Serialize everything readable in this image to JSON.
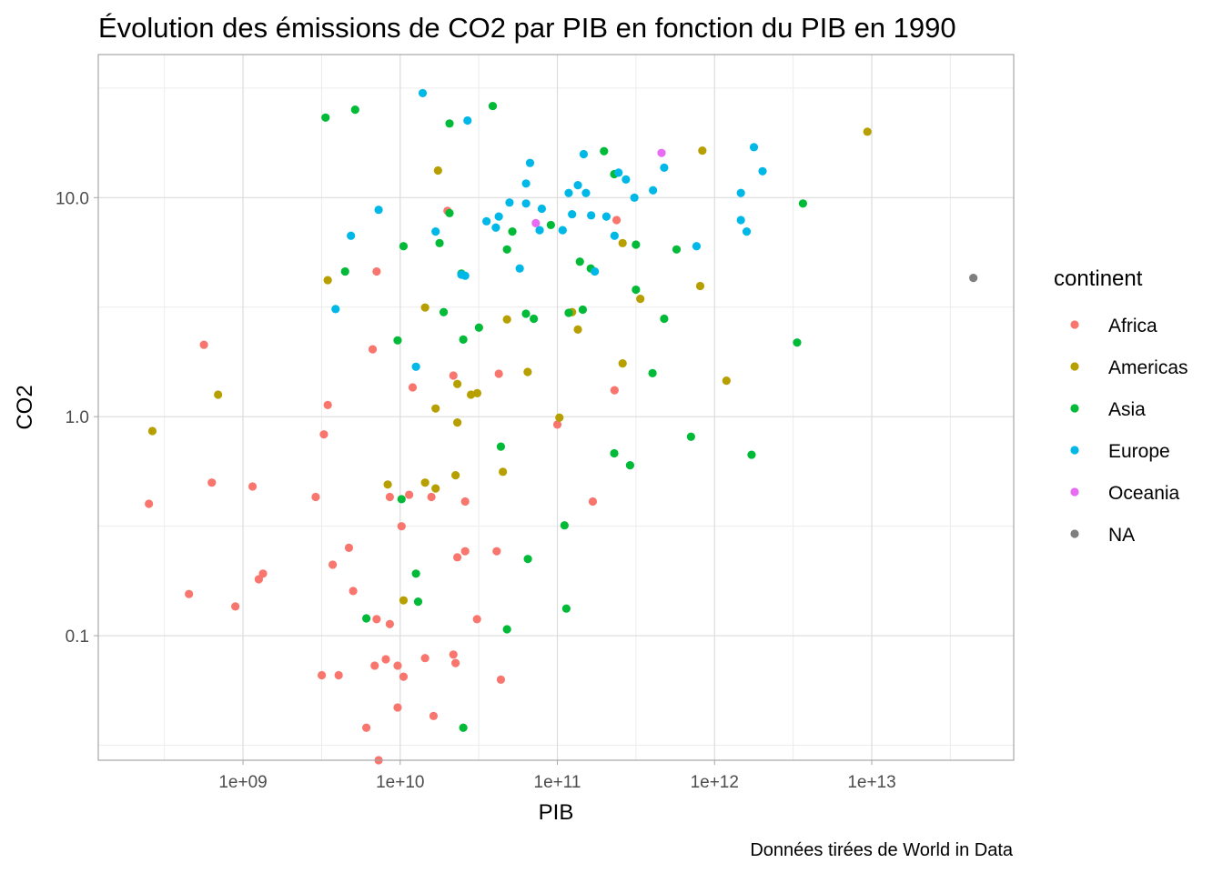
{
  "chart_data": {
    "type": "scatter",
    "title": "Évolution des émissions de CO2 par PIB en fonction du PIB en 1990",
    "xlabel": "PIB",
    "ylabel": "CO2",
    "caption": "Données tirées de World in Data",
    "x_scale": "log10",
    "y_scale": "log10",
    "xlim": [
      120000000,
      80000000000000
    ],
    "ylim": [
      0.027,
      45
    ],
    "x_ticks": [
      {
        "value": 1000000000.0,
        "label": "1e+09"
      },
      {
        "value": 10000000000.0,
        "label": "1e+10"
      },
      {
        "value": 100000000000.0,
        "label": "1e+11"
      },
      {
        "value": 1000000000000.0,
        "label": "1e+12"
      },
      {
        "value": 10000000000000.0,
        "label": "1e+13"
      }
    ],
    "y_ticks": [
      {
        "value": 0.1,
        "label": "0.1"
      },
      {
        "value": 1,
        "label": "1.0"
      },
      {
        "value": 10,
        "label": "10.0"
      }
    ],
    "grid": true,
    "legend": {
      "title": "continent",
      "position": "right",
      "entries": [
        {
          "name": "Africa",
          "color": "#F8766D"
        },
        {
          "name": "Americas",
          "color": "#B79F00"
        },
        {
          "name": "Asia",
          "color": "#00BA38"
        },
        {
          "name": "Europe",
          "color": "#00B8E7"
        },
        {
          "name": "Oceania",
          "color": "#E76BF3"
        },
        {
          "name": "NA",
          "color": "#7F7F7F"
        }
      ]
    },
    "series": [
      {
        "name": "Africa",
        "color": "#F8766D",
        "points": [
          [
            252000000.0,
            0.4
          ],
          [
            453000000.0,
            0.155
          ],
          [
            564000000.0,
            2.13
          ],
          [
            633000000.0,
            0.5
          ],
          [
            894000000.0,
            0.136
          ],
          [
            1150000000.0,
            0.48
          ],
          [
            1260000000.0,
            0.181
          ],
          [
            1340000000.0,
            0.192
          ],
          [
            2900000000.0,
            0.43
          ],
          [
            3170000000.0,
            0.066
          ],
          [
            3270000000.0,
            0.83
          ],
          [
            3460000000.0,
            1.13
          ],
          [
            3720000000.0,
            0.211
          ],
          [
            4060000000.0,
            0.066
          ],
          [
            4720000000.0,
            0.252
          ],
          [
            5020000000.0,
            0.16
          ],
          [
            6090000000.0,
            0.038
          ],
          [
            6680000000.0,
            2.03
          ],
          [
            6880000000.0,
            0.073
          ],
          [
            7080000000.0,
            0.119
          ],
          [
            7080000000.0,
            4.6
          ],
          [
            7290000000.0,
            0.027
          ],
          [
            8100000000.0,
            0.078
          ],
          [
            8590000000.0,
            0.113
          ],
          [
            8590000000.0,
            0.43
          ],
          [
            9630000000.0,
            0.047
          ],
          [
            9630000000.0,
            0.073
          ],
          [
            10200000000.0,
            0.316
          ],
          [
            10500000000.0,
            0.065
          ],
          [
            11400000000.0,
            0.44
          ],
          [
            12000000000.0,
            1.36
          ],
          [
            14400000000.0,
            0.079
          ],
          [
            15800000000.0,
            0.43
          ],
          [
            16300000000.0,
            0.043
          ],
          [
            20000000000.0,
            8.7
          ],
          [
            21800000000.0,
            1.54
          ],
          [
            21800000000.0,
            0.082
          ],
          [
            22500000000.0,
            0.075
          ],
          [
            23100000000.0,
            0.228
          ],
          [
            25900000000.0,
            0.41
          ],
          [
            25900000000.0,
            0.243
          ],
          [
            30800000000.0,
            0.119
          ],
          [
            41100000000.0,
            0.243
          ],
          [
            42400000000.0,
            1.57
          ],
          [
            43700000000.0,
            0.063
          ],
          [
            100000000000.0,
            0.92
          ],
          [
            168000000000.0,
            0.41
          ],
          [
            231000000000.0,
            1.32
          ],
          [
            238000000000.0,
            7.9
          ]
        ]
      },
      {
        "name": "Americas",
        "color": "#B79F00",
        "points": [
          [
            265000000.0,
            0.86
          ],
          [
            694000000.0,
            1.26
          ],
          [
            3460000000.0,
            4.2
          ],
          [
            8330000000.0,
            0.49
          ],
          [
            10500000000.0,
            0.145
          ],
          [
            14400000000.0,
            0.5
          ],
          [
            14400000000.0,
            3.15
          ],
          [
            16800000000.0,
            1.09
          ],
          [
            16800000000.0,
            0.47
          ],
          [
            17400000000.0,
            13.3
          ],
          [
            22500000000.0,
            0.54
          ],
          [
            23100000000.0,
            1.41
          ],
          [
            23100000000.0,
            0.94
          ],
          [
            28200000000.0,
            1.26
          ],
          [
            30900000000.0,
            1.28
          ],
          [
            45000000000.0,
            0.56
          ],
          [
            47800000000.0,
            2.78
          ],
          [
            64700000000.0,
            1.6
          ],
          [
            103000000000.0,
            0.99
          ],
          [
            124000000000.0,
            3.0
          ],
          [
            135000000000.0,
            2.5
          ],
          [
            260000000000.0,
            6.2
          ],
          [
            260000000000.0,
            1.75
          ],
          [
            337000000000.0,
            3.45
          ],
          [
            810000000000.0,
            3.95
          ],
          [
            836000000000.0,
            16.4
          ],
          [
            1190000000000.0,
            1.46
          ],
          [
            9380000000000.0,
            20.0
          ]
        ]
      },
      {
        "name": "Asia",
        "color": "#00BA38",
        "points": [
          [
            3350000000.0,
            23.2
          ],
          [
            4460000000.0,
            4.6
          ],
          [
            5170000000.0,
            25.2
          ],
          [
            6090000000.0,
            0.12
          ],
          [
            9630000000.0,
            2.23
          ],
          [
            10200000000.0,
            0.42
          ],
          [
            10500000000.0,
            6.0
          ],
          [
            12600000000.0,
            0.192
          ],
          [
            13000000000.0,
            0.143
          ],
          [
            17800000000.0,
            6.2
          ],
          [
            18900000000.0,
            3.0
          ],
          [
            20600000000.0,
            21.8
          ],
          [
            20600000000.0,
            8.5
          ],
          [
            24500000000.0,
            4.5
          ],
          [
            25200000000.0,
            2.25
          ],
          [
            25200000000.0,
            0.038
          ],
          [
            31700000000.0,
            2.55
          ],
          [
            38800000000.0,
            26.2
          ],
          [
            43700000000.0,
            0.73
          ],
          [
            47800000000.0,
            5.8
          ],
          [
            47800000000.0,
            0.107
          ],
          [
            51700000000.0,
            7.0
          ],
          [
            63100000000.0,
            2.95
          ],
          [
            64900000000.0,
            0.224
          ],
          [
            70800000000.0,
            2.8
          ],
          [
            90900000000.0,
            7.5
          ],
          [
            111000000000.0,
            0.319
          ],
          [
            114000000000.0,
            0.133
          ],
          [
            118000000000.0,
            2.98
          ],
          [
            139000000000.0,
            5.1
          ],
          [
            145000000000.0,
            3.08
          ],
          [
            163000000000.0,
            4.75
          ],
          [
            198000000000.0,
            16.3
          ],
          [
            230000000000.0,
            12.8
          ],
          [
            230000000000.0,
            0.68
          ],
          [
            290000000000.0,
            0.6
          ],
          [
            316000000000.0,
            3.8
          ],
          [
            316000000000.0,
            6.1
          ],
          [
            403000000000.0,
            1.58
          ],
          [
            478000000000.0,
            2.8
          ],
          [
            573000000000.0,
            5.8
          ],
          [
            708000000000.0,
            0.81
          ],
          [
            1720000000000.0,
            0.67
          ],
          [
            3350000000000.0,
            2.18
          ],
          [
            3650000000000.0,
            9.4
          ]
        ]
      },
      {
        "name": "Europe",
        "color": "#00B8E7",
        "points": [
          [
            3880000000.0,
            3.1
          ],
          [
            4860000000.0,
            6.7
          ],
          [
            7290000000.0,
            8.8
          ],
          [
            12600000000.0,
            1.69
          ],
          [
            13900000000.0,
            30.0
          ],
          [
            16800000000.0,
            7.0
          ],
          [
            24500000000.0,
            4.45
          ],
          [
            25900000000.0,
            4.4
          ],
          [
            26800000000.0,
            22.5
          ],
          [
            35400000000.0,
            7.8
          ],
          [
            40600000000.0,
            7.3
          ],
          [
            42400000000.0,
            8.2
          ],
          [
            49600000000.0,
            9.5
          ],
          [
            57600000000.0,
            4.75
          ],
          [
            63200000000.0,
            11.6
          ],
          [
            63200000000.0,
            9.4
          ],
          [
            67000000000.0,
            14.4
          ],
          [
            77100000000.0,
            7.1
          ],
          [
            79600000000.0,
            8.9
          ],
          [
            108000000000.0,
            7.1
          ],
          [
            118000000000.0,
            10.5
          ],
          [
            124000000000.0,
            8.4
          ],
          [
            135000000000.0,
            11.4
          ],
          [
            147000000000.0,
            15.8
          ],
          [
            152000000000.0,
            10.5
          ],
          [
            164000000000.0,
            8.3
          ],
          [
            173000000000.0,
            4.6
          ],
          [
            205000000000.0,
            8.2
          ],
          [
            231000000000.0,
            6.7
          ],
          [
            245000000000.0,
            13.0
          ],
          [
            273000000000.0,
            12.1
          ],
          [
            309000000000.0,
            10.0
          ],
          [
            406000000000.0,
            10.8
          ],
          [
            478000000000.0,
            13.7
          ],
          [
            768000000000.0,
            6.0
          ],
          [
            1470000000000.0,
            10.5
          ],
          [
            1470000000000.0,
            7.9
          ],
          [
            1600000000000.0,
            7.0
          ],
          [
            1780000000000.0,
            17.0
          ],
          [
            2020000000000.0,
            13.2
          ]
        ]
      },
      {
        "name": "Oceania",
        "color": "#E76BF3",
        "points": [
          [
            72900000000.0,
            7.65
          ],
          [
            460000000000.0,
            16.0
          ]
        ]
      },
      {
        "name": "NA",
        "color": "#7F7F7F",
        "points": [
          [
            44300000000000.0,
            4.3
          ]
        ]
      }
    ]
  }
}
